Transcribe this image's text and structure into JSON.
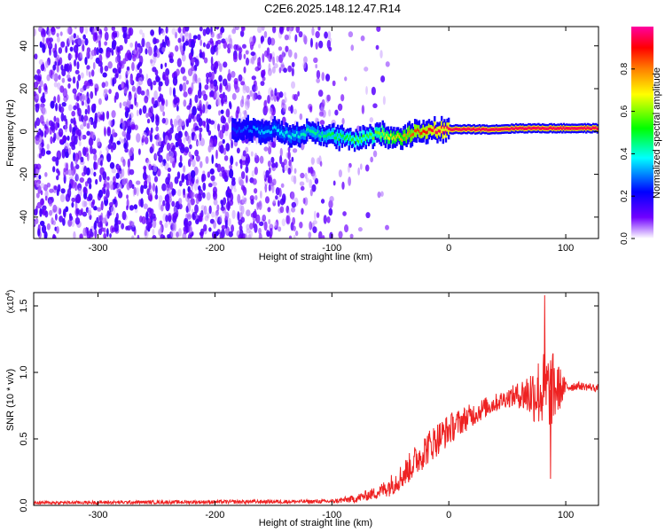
{
  "title": "C2E6.2025.148.12.47.R14",
  "chart_data": [
    {
      "type": "heatmap",
      "xlabel": "Height of straight line (km)",
      "ylabel": "Frequency (Hz)",
      "xlim": [
        -355,
        128
      ],
      "ylim": [
        -50,
        49
      ],
      "xticks": [
        -300,
        -200,
        -100,
        0,
        100
      ],
      "yticks": [
        -40,
        -20,
        0,
        20,
        40
      ],
      "colorbar": {
        "label": "Normalized spectral amplitude",
        "range": [
          0,
          1
        ],
        "ticks": [
          "0.0",
          "0.2",
          "0.4",
          "0.6",
          "0.8"
        ],
        "colors": [
          "#ffffff",
          "#7000ff",
          "#0000ff",
          "#00ffff",
          "#00ff00",
          "#ffff00",
          "#ff8000",
          "#ff0000",
          "#ff00a0"
        ]
      },
      "ridge": {
        "description": "Narrow high-amplitude frequency track",
        "x": [
          -185,
          -170,
          -160,
          -150,
          -140,
          -130,
          -120,
          -110,
          -100,
          -90,
          -80,
          -70,
          -60,
          -50,
          -40,
          -30,
          -20,
          -10,
          0,
          20,
          40,
          60,
          80,
          100,
          128
        ],
        "freq": [
          0.5,
          1.5,
          0.5,
          1.0,
          -1.0,
          -2.0,
          0.0,
          -1.0,
          -2.0,
          -3.0,
          -4.0,
          -3.0,
          -1.0,
          -2.0,
          -3.0,
          0.0,
          0.5,
          0.5,
          1.0,
          1.0,
          1.0,
          1.5,
          1.5,
          1.5,
          1.5
        ],
        "amplitude": [
          0.25,
          0.3,
          0.35,
          0.35,
          0.4,
          0.4,
          0.45,
          0.45,
          0.5,
          0.5,
          0.55,
          0.55,
          0.6,
          0.7,
          0.75,
          0.85,
          0.9,
          0.95,
          0.95,
          0.95,
          0.95,
          0.95,
          0.95,
          0.95,
          0.95
        ]
      },
      "noise_region": {
        "x_range": [
          -355,
          -80
        ],
        "amplitude_level": 0.1
      }
    },
    {
      "type": "line",
      "xlabel": "Height of straight line (km)",
      "ylabel": "SNR (10 * v/v)",
      "y_multiplier_label": "(x10",
      "y_multiplier_exp": "4",
      "xlim": [
        -355,
        128
      ],
      "ylim": [
        0,
        1.6
      ],
      "xticks": [
        -300,
        -200,
        -100,
        0,
        100
      ],
      "yticks": [
        "0.0",
        "0.5",
        "1.0",
        "1.5"
      ],
      "color": "#ee2222",
      "trend": {
        "x": [
          -355,
          -100,
          -80,
          -60,
          -50,
          -40,
          -30,
          -20,
          -10,
          0,
          10,
          20,
          30,
          40,
          50,
          60,
          70,
          80,
          90,
          100,
          110,
          120,
          128
        ],
        "y": [
          0.02,
          0.03,
          0.05,
          0.1,
          0.15,
          0.22,
          0.32,
          0.42,
          0.5,
          0.57,
          0.63,
          0.68,
          0.73,
          0.77,
          0.81,
          0.83,
          0.84,
          0.86,
          0.87,
          0.89,
          0.9,
          0.89,
          0.88
        ],
        "noise": [
          0.012,
          0.015,
          0.03,
          0.05,
          0.08,
          0.1,
          0.12,
          0.13,
          0.13,
          0.12,
          0.1,
          0.09,
          0.08,
          0.07,
          0.07,
          0.1,
          0.2,
          0.3,
          0.28,
          0.05,
          0.03,
          0.03,
          0.03
        ]
      },
      "peaks": [
        {
          "x": 82,
          "y": 1.58
        },
        {
          "x": 87,
          "y": 0.2
        }
      ]
    }
  ]
}
